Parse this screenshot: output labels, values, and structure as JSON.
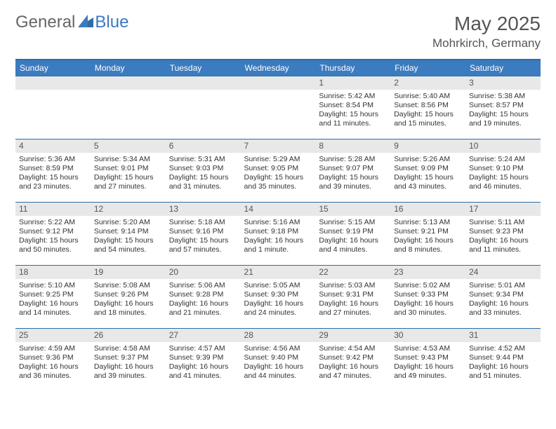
{
  "logo": {
    "general": "General",
    "blue": "Blue"
  },
  "title": "May 2025",
  "location": "Mohrkirch, Germany",
  "colors": {
    "header_bg": "#3b7bbf",
    "header_text": "#ffffff",
    "border": "#2e6da4",
    "daynum_bg": "#e8e8e8",
    "text": "#333333",
    "title_text": "#555555"
  },
  "typography": {
    "title_fontsize": 28,
    "location_fontsize": 17,
    "header_fontsize": 12,
    "cell_fontsize": 10.5
  },
  "days": [
    "Sunday",
    "Monday",
    "Tuesday",
    "Wednesday",
    "Thursday",
    "Friday",
    "Saturday"
  ],
  "weeks": [
    [
      null,
      null,
      null,
      null,
      {
        "n": "1",
        "sr": "Sunrise: 5:42 AM",
        "ss": "Sunset: 8:54 PM",
        "dl": "Daylight: 15 hours and 11 minutes."
      },
      {
        "n": "2",
        "sr": "Sunrise: 5:40 AM",
        "ss": "Sunset: 8:56 PM",
        "dl": "Daylight: 15 hours and 15 minutes."
      },
      {
        "n": "3",
        "sr": "Sunrise: 5:38 AM",
        "ss": "Sunset: 8:57 PM",
        "dl": "Daylight: 15 hours and 19 minutes."
      }
    ],
    [
      {
        "n": "4",
        "sr": "Sunrise: 5:36 AM",
        "ss": "Sunset: 8:59 PM",
        "dl": "Daylight: 15 hours and 23 minutes."
      },
      {
        "n": "5",
        "sr": "Sunrise: 5:34 AM",
        "ss": "Sunset: 9:01 PM",
        "dl": "Daylight: 15 hours and 27 minutes."
      },
      {
        "n": "6",
        "sr": "Sunrise: 5:31 AM",
        "ss": "Sunset: 9:03 PM",
        "dl": "Daylight: 15 hours and 31 minutes."
      },
      {
        "n": "7",
        "sr": "Sunrise: 5:29 AM",
        "ss": "Sunset: 9:05 PM",
        "dl": "Daylight: 15 hours and 35 minutes."
      },
      {
        "n": "8",
        "sr": "Sunrise: 5:28 AM",
        "ss": "Sunset: 9:07 PM",
        "dl": "Daylight: 15 hours and 39 minutes."
      },
      {
        "n": "9",
        "sr": "Sunrise: 5:26 AM",
        "ss": "Sunset: 9:09 PM",
        "dl": "Daylight: 15 hours and 43 minutes."
      },
      {
        "n": "10",
        "sr": "Sunrise: 5:24 AM",
        "ss": "Sunset: 9:10 PM",
        "dl": "Daylight: 15 hours and 46 minutes."
      }
    ],
    [
      {
        "n": "11",
        "sr": "Sunrise: 5:22 AM",
        "ss": "Sunset: 9:12 PM",
        "dl": "Daylight: 15 hours and 50 minutes."
      },
      {
        "n": "12",
        "sr": "Sunrise: 5:20 AM",
        "ss": "Sunset: 9:14 PM",
        "dl": "Daylight: 15 hours and 54 minutes."
      },
      {
        "n": "13",
        "sr": "Sunrise: 5:18 AM",
        "ss": "Sunset: 9:16 PM",
        "dl": "Daylight: 15 hours and 57 minutes."
      },
      {
        "n": "14",
        "sr": "Sunrise: 5:16 AM",
        "ss": "Sunset: 9:18 PM",
        "dl": "Daylight: 16 hours and 1 minute."
      },
      {
        "n": "15",
        "sr": "Sunrise: 5:15 AM",
        "ss": "Sunset: 9:19 PM",
        "dl": "Daylight: 16 hours and 4 minutes."
      },
      {
        "n": "16",
        "sr": "Sunrise: 5:13 AM",
        "ss": "Sunset: 9:21 PM",
        "dl": "Daylight: 16 hours and 8 minutes."
      },
      {
        "n": "17",
        "sr": "Sunrise: 5:11 AM",
        "ss": "Sunset: 9:23 PM",
        "dl": "Daylight: 16 hours and 11 minutes."
      }
    ],
    [
      {
        "n": "18",
        "sr": "Sunrise: 5:10 AM",
        "ss": "Sunset: 9:25 PM",
        "dl": "Daylight: 16 hours and 14 minutes."
      },
      {
        "n": "19",
        "sr": "Sunrise: 5:08 AM",
        "ss": "Sunset: 9:26 PM",
        "dl": "Daylight: 16 hours and 18 minutes."
      },
      {
        "n": "20",
        "sr": "Sunrise: 5:06 AM",
        "ss": "Sunset: 9:28 PM",
        "dl": "Daylight: 16 hours and 21 minutes."
      },
      {
        "n": "21",
        "sr": "Sunrise: 5:05 AM",
        "ss": "Sunset: 9:30 PM",
        "dl": "Daylight: 16 hours and 24 minutes."
      },
      {
        "n": "22",
        "sr": "Sunrise: 5:03 AM",
        "ss": "Sunset: 9:31 PM",
        "dl": "Daylight: 16 hours and 27 minutes."
      },
      {
        "n": "23",
        "sr": "Sunrise: 5:02 AM",
        "ss": "Sunset: 9:33 PM",
        "dl": "Daylight: 16 hours and 30 minutes."
      },
      {
        "n": "24",
        "sr": "Sunrise: 5:01 AM",
        "ss": "Sunset: 9:34 PM",
        "dl": "Daylight: 16 hours and 33 minutes."
      }
    ],
    [
      {
        "n": "25",
        "sr": "Sunrise: 4:59 AM",
        "ss": "Sunset: 9:36 PM",
        "dl": "Daylight: 16 hours and 36 minutes."
      },
      {
        "n": "26",
        "sr": "Sunrise: 4:58 AM",
        "ss": "Sunset: 9:37 PM",
        "dl": "Daylight: 16 hours and 39 minutes."
      },
      {
        "n": "27",
        "sr": "Sunrise: 4:57 AM",
        "ss": "Sunset: 9:39 PM",
        "dl": "Daylight: 16 hours and 41 minutes."
      },
      {
        "n": "28",
        "sr": "Sunrise: 4:56 AM",
        "ss": "Sunset: 9:40 PM",
        "dl": "Daylight: 16 hours and 44 minutes."
      },
      {
        "n": "29",
        "sr": "Sunrise: 4:54 AM",
        "ss": "Sunset: 9:42 PM",
        "dl": "Daylight: 16 hours and 47 minutes."
      },
      {
        "n": "30",
        "sr": "Sunrise: 4:53 AM",
        "ss": "Sunset: 9:43 PM",
        "dl": "Daylight: 16 hours and 49 minutes."
      },
      {
        "n": "31",
        "sr": "Sunrise: 4:52 AM",
        "ss": "Sunset: 9:44 PM",
        "dl": "Daylight: 16 hours and 51 minutes."
      }
    ]
  ]
}
